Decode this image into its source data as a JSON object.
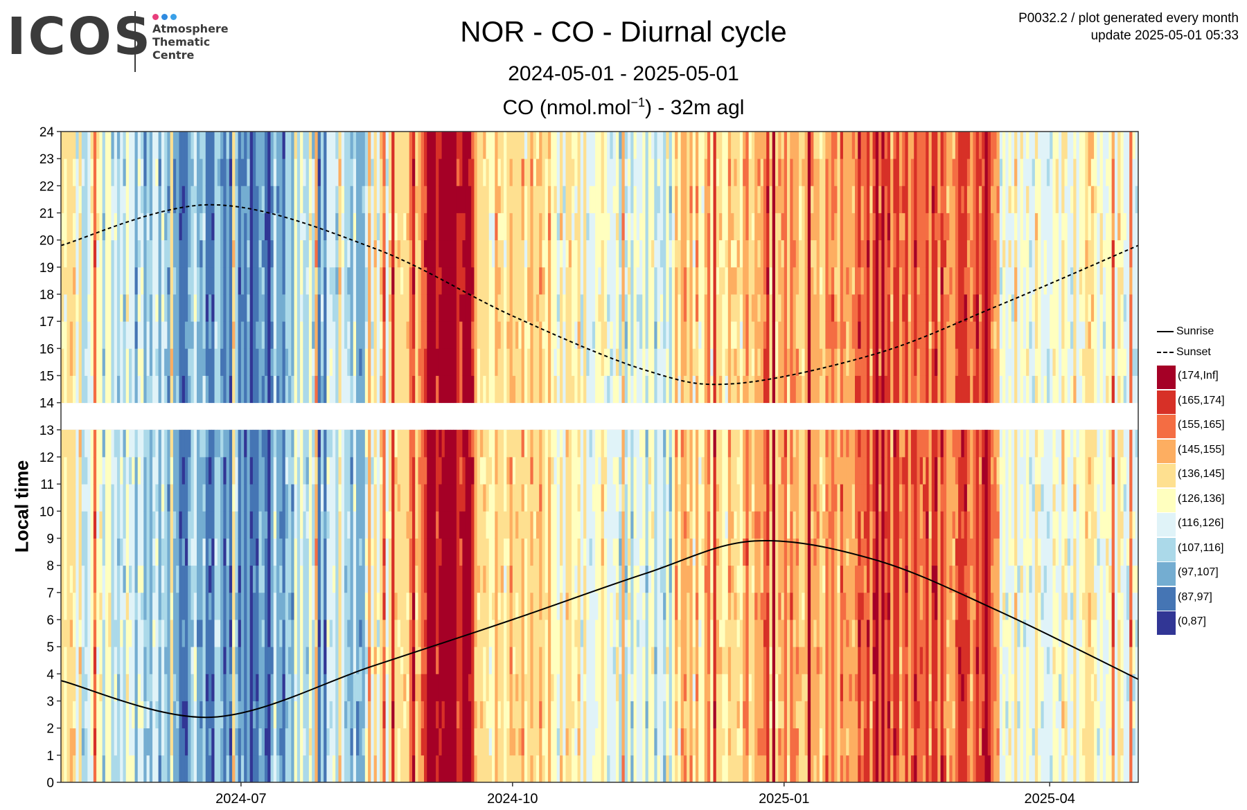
{
  "logo": {
    "word": "ICOS",
    "lines": [
      "Atmosphere",
      "Thematic",
      "Centre"
    ],
    "dot_colors": [
      "#e83e7c",
      "#2f8ae0",
      "#3aa0e8"
    ]
  },
  "meta": {
    "line1": "P0032.2 / plot generated every month",
    "line2": "update  2025-05-01 05:33"
  },
  "header": {
    "title": "NOR - CO - Diurnal cycle",
    "subtitle": "2024-05-01 - 2025-05-01",
    "unit_prefix": "CO (nmol.mol",
    "unit_sup": "−1",
    "unit_suffix": ") - 32m agl"
  },
  "chart_data": {
    "type": "heatmap",
    "title": "NOR - CO - Diurnal cycle",
    "ylabel": "Local time",
    "xlabel": "",
    "x_range": [
      "2024-05-01",
      "2025-05-01"
    ],
    "ylim": [
      0,
      24
    ],
    "x_ticks": [
      "2024-07",
      "2024-10",
      "2025-01",
      "2025-04"
    ],
    "y_ticks": [
      0,
      1,
      2,
      3,
      4,
      5,
      6,
      7,
      8,
      9,
      10,
      11,
      12,
      13,
      14,
      15,
      16,
      17,
      18,
      19,
      20,
      21,
      22,
      23,
      24
    ],
    "grid": true,
    "legend_position": "right",
    "missing_hours": [
      13
    ],
    "bins": [
      {
        "label": "(174,Inf]",
        "color": "#a50026"
      },
      {
        "label": "(165,174]",
        "color": "#d73027"
      },
      {
        "label": "(155,165]",
        "color": "#f46d43"
      },
      {
        "label": "(145,155]",
        "color": "#fdae61"
      },
      {
        "label": "(136,145]",
        "color": "#fee090"
      },
      {
        "label": "(126,136]",
        "color": "#ffffbf"
      },
      {
        "label": "(116,126]",
        "color": "#e0f3f8"
      },
      {
        "label": "(107,116]",
        "color": "#abd9e9"
      },
      {
        "label": "(97,107]",
        "color": "#74add1"
      },
      {
        "label": "(87,97]",
        "color": "#4575b4"
      },
      {
        "label": "(0,87]",
        "color": "#313695"
      }
    ],
    "daily_level": [
      {
        "start": "2024-05-01",
        "end": "2024-05-08",
        "bin": "(126,136]"
      },
      {
        "start": "2024-05-08",
        "end": "2024-05-25",
        "bin": "(116,126]"
      },
      {
        "start": "2024-05-25",
        "end": "2024-06-05",
        "bin": "(107,116]"
      },
      {
        "start": "2024-06-05",
        "end": "2024-06-30",
        "bin": "(97,107]"
      },
      {
        "start": "2024-06-30",
        "end": "2024-07-15",
        "bin": "(87,97]"
      },
      {
        "start": "2024-07-15",
        "end": "2024-07-30",
        "bin": "(97,107]"
      },
      {
        "start": "2024-07-30",
        "end": "2024-08-12",
        "bin": "(107,116]"
      },
      {
        "start": "2024-08-12",
        "end": "2024-08-22",
        "bin": "(126,136]"
      },
      {
        "start": "2024-08-22",
        "end": "2024-09-01",
        "bin": "(145,155]"
      },
      {
        "start": "2024-09-01",
        "end": "2024-09-18",
        "bin": "(174,Inf]"
      },
      {
        "start": "2024-09-18",
        "end": "2024-10-15",
        "bin": "(136,145]"
      },
      {
        "start": "2024-10-15",
        "end": "2024-11-05",
        "bin": "(126,136]"
      },
      {
        "start": "2024-11-05",
        "end": "2024-11-25",
        "bin": "(116,126]"
      },
      {
        "start": "2024-11-25",
        "end": "2024-12-20",
        "bin": "(136,145]"
      },
      {
        "start": "2024-12-20",
        "end": "2025-01-20",
        "bin": "(145,155]"
      },
      {
        "start": "2025-01-20",
        "end": "2025-03-15",
        "bin": "(155,165]"
      },
      {
        "start": "2025-03-15",
        "end": "2025-05-01",
        "bin": "(126,136]"
      }
    ],
    "series": [
      {
        "name": "Sunrise",
        "line": "solid",
        "x": [
          "2024-05-01",
          "2024-06-21",
          "2024-08-15",
          "2024-10-01",
          "2024-11-15",
          "2024-12-22",
          "2025-02-01",
          "2025-03-15",
          "2025-05-01"
        ],
        "y": [
          3.75,
          2.4,
          4.3,
          6.0,
          7.7,
          8.9,
          8.2,
          6.3,
          3.8
        ]
      },
      {
        "name": "Sunset",
        "line": "dashed",
        "x": [
          "2024-05-01",
          "2024-06-21",
          "2024-08-15",
          "2024-10-01",
          "2024-11-15",
          "2024-12-15",
          "2025-02-01",
          "2025-03-15",
          "2025-05-01"
        ],
        "y": [
          19.8,
          21.3,
          19.7,
          17.2,
          15.2,
          14.7,
          15.8,
          17.6,
          19.8
        ]
      }
    ]
  }
}
